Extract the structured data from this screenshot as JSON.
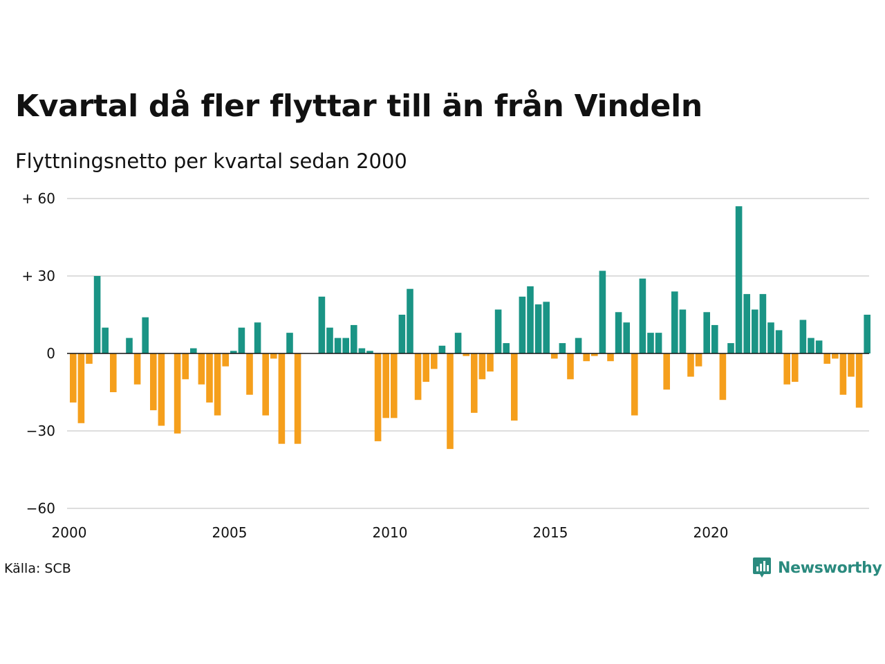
{
  "title": "Kvartal då fler flyttar till än från Vindeln",
  "subtitle": "Flyttningsnetto per kvartal sedan 2000",
  "source": "Källa: SCB",
  "logo_text": "Newsworthy",
  "colors": {
    "positive": "#1a9485",
    "negative": "#f59f1c",
    "grid": "#dddddd",
    "zero_line": "#111111",
    "logo": "#2a8a7e"
  },
  "chart_data": {
    "type": "bar",
    "xlabel": "",
    "ylabel": "",
    "ylim": [
      -60,
      60
    ],
    "yticks": [
      60,
      30,
      0,
      -30,
      -60
    ],
    "ytick_labels": [
      "+ 60",
      "+ 30",
      "0",
      "−30",
      "−60"
    ],
    "xticks": [
      2000,
      2005,
      2010,
      2015,
      2020
    ],
    "xtick_labels": [
      "2000",
      "2005",
      "2010",
      "2015",
      "2020"
    ],
    "grid": true,
    "start_year": 2000,
    "values": [
      -19,
      -27,
      -4,
      30,
      10,
      -15,
      0,
      6,
      -12,
      14,
      -22,
      -28,
      0,
      -31,
      -10,
      2,
      -12,
      -19,
      -24,
      -5,
      1,
      10,
      -16,
      12,
      -24,
      -2,
      -35,
      8,
      -35,
      0,
      0,
      22,
      10,
      6,
      6,
      11,
      2,
      1,
      -34,
      -25,
      -25,
      15,
      25,
      -18,
      -11,
      -6,
      3,
      -37,
      8,
      -1,
      -23,
      -10,
      -7,
      17,
      4,
      -26,
      22,
      26,
      19,
      20,
      -2,
      4,
      -10,
      6,
      -3,
      -1,
      32,
      -3,
      16,
      12,
      -24,
      29,
      8,
      8,
      -14,
      24,
      17,
      -9,
      -5,
      16,
      11,
      -18,
      4,
      57,
      23,
      17,
      23,
      12,
      9,
      -12,
      -11,
      13,
      6,
      5,
      -4,
      -2,
      -16,
      -9,
      -21,
      15
    ]
  }
}
